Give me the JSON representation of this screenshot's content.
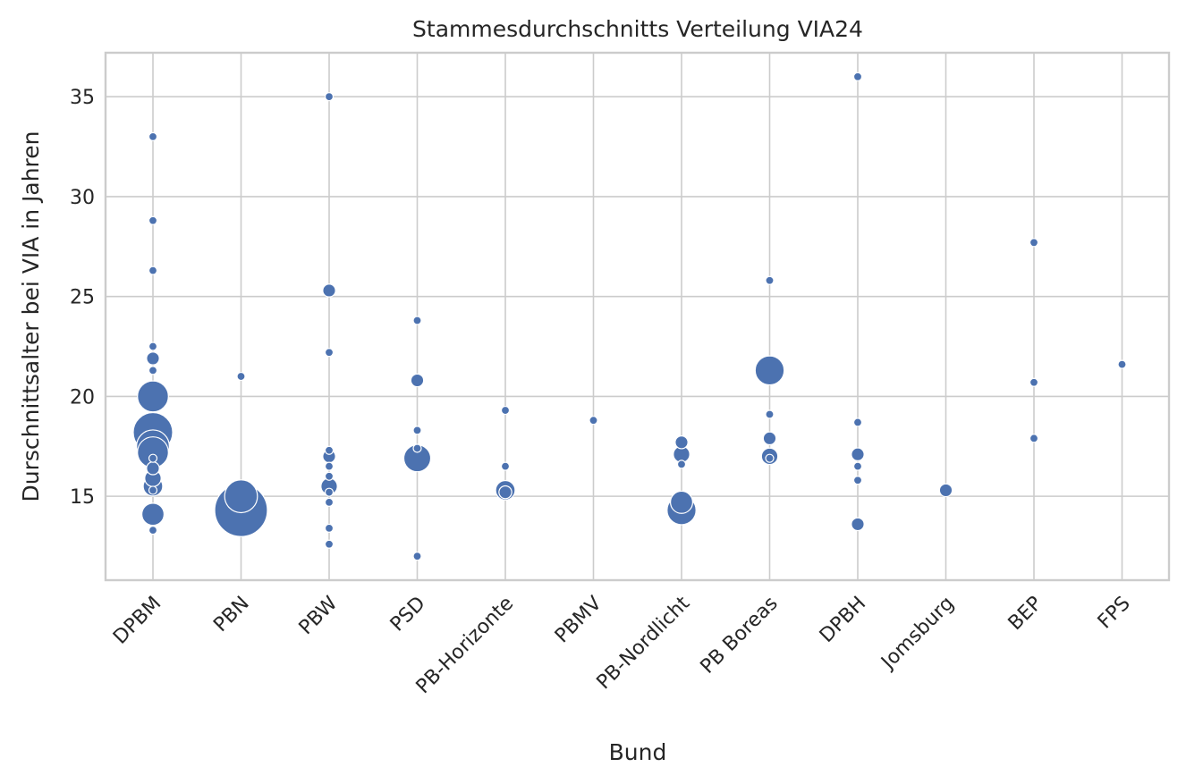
{
  "chart_data": {
    "type": "scatter",
    "title": "Stammesdurchschnitts Verteilung VIA24",
    "xlabel": "Bund",
    "ylabel": "Durschnittsalter bei VIA in Jahren",
    "categories": [
      "DPBM",
      "PBN",
      "PBW",
      "PSD",
      "PB-Horizonte",
      "PBMV",
      "PB-Nordlicht",
      "PB Boreas",
      "DPBH",
      "Jomsburg",
      "BEP",
      "FPS"
    ],
    "ylim": [
      10.8,
      37.2
    ],
    "yticks": [
      15,
      20,
      25,
      30,
      35
    ],
    "grid": true,
    "color": "#4c72b0",
    "points": [
      {
        "x": "DPBM",
        "y": 33.0,
        "size": 1
      },
      {
        "x": "DPBM",
        "y": 28.8,
        "size": 1
      },
      {
        "x": "DPBM",
        "y": 26.3,
        "size": 1
      },
      {
        "x": "DPBM",
        "y": 22.5,
        "size": 1
      },
      {
        "x": "DPBM",
        "y": 21.9,
        "size": 2
      },
      {
        "x": "DPBM",
        "y": 21.3,
        "size": 1
      },
      {
        "x": "DPBM",
        "y": 20.0,
        "size": 9
      },
      {
        "x": "DPBM",
        "y": 18.2,
        "size": 14
      },
      {
        "x": "DPBM",
        "y": 17.5,
        "size": 10
      },
      {
        "x": "DPBM",
        "y": 17.2,
        "size": 9
      },
      {
        "x": "DPBM",
        "y": 16.9,
        "size": 1
      },
      {
        "x": "DPBM",
        "y": 16.4,
        "size": 2
      },
      {
        "x": "DPBM",
        "y": 15.9,
        "size": 3
      },
      {
        "x": "DPBM",
        "y": 15.5,
        "size": 4
      },
      {
        "x": "DPBM",
        "y": 15.3,
        "size": 1
      },
      {
        "x": "DPBM",
        "y": 14.1,
        "size": 5
      },
      {
        "x": "DPBM",
        "y": 13.3,
        "size": 1
      },
      {
        "x": "PBN",
        "y": 21.0,
        "size": 1
      },
      {
        "x": "PBN",
        "y": 15.0,
        "size": 10
      },
      {
        "x": "PBN",
        "y": 14.3,
        "size": 24
      },
      {
        "x": "PBW",
        "y": 35.0,
        "size": 1
      },
      {
        "x": "PBW",
        "y": 25.3,
        "size": 2
      },
      {
        "x": "PBW",
        "y": 22.2,
        "size": 1
      },
      {
        "x": "PBW",
        "y": 17.3,
        "size": 1
      },
      {
        "x": "PBW",
        "y": 17.0,
        "size": 2
      },
      {
        "x": "PBW",
        "y": 16.5,
        "size": 1
      },
      {
        "x": "PBW",
        "y": 16.0,
        "size": 1
      },
      {
        "x": "PBW",
        "y": 15.5,
        "size": 3
      },
      {
        "x": "PBW",
        "y": 15.2,
        "size": 1
      },
      {
        "x": "PBW",
        "y": 14.7,
        "size": 1
      },
      {
        "x": "PBW",
        "y": 13.4,
        "size": 1
      },
      {
        "x": "PBW",
        "y": 12.6,
        "size": 1
      },
      {
        "x": "PSD",
        "y": 23.8,
        "size": 1
      },
      {
        "x": "PSD",
        "y": 20.8,
        "size": 2
      },
      {
        "x": "PSD",
        "y": 18.3,
        "size": 1
      },
      {
        "x": "PSD",
        "y": 17.4,
        "size": 1
      },
      {
        "x": "PSD",
        "y": 16.9,
        "size": 7
      },
      {
        "x": "PSD",
        "y": 12.0,
        "size": 1
      },
      {
        "x": "PB-Horizonte",
        "y": 19.3,
        "size": 1
      },
      {
        "x": "PB-Horizonte",
        "y": 16.5,
        "size": 1
      },
      {
        "x": "PB-Horizonte",
        "y": 15.3,
        "size": 4
      },
      {
        "x": "PB-Horizonte",
        "y": 15.2,
        "size": 2
      },
      {
        "x": "PBMV",
        "y": 18.8,
        "size": 1
      },
      {
        "x": "PB-Nordlicht",
        "y": 17.7,
        "size": 2
      },
      {
        "x": "PB-Nordlicht",
        "y": 17.1,
        "size": 3
      },
      {
        "x": "PB-Nordlicht",
        "y": 16.6,
        "size": 1
      },
      {
        "x": "PB-Nordlicht",
        "y": 14.7,
        "size": 5
      },
      {
        "x": "PB-Nordlicht",
        "y": 14.3,
        "size": 8
      },
      {
        "x": "PB Boreas",
        "y": 25.8,
        "size": 1
      },
      {
        "x": "PB Boreas",
        "y": 21.3,
        "size": 8
      },
      {
        "x": "PB Boreas",
        "y": 19.1,
        "size": 1
      },
      {
        "x": "PB Boreas",
        "y": 17.9,
        "size": 2
      },
      {
        "x": "PB Boreas",
        "y": 17.0,
        "size": 3
      },
      {
        "x": "PB Boreas",
        "y": 16.9,
        "size": 1
      },
      {
        "x": "DPBH",
        "y": 36.0,
        "size": 1
      },
      {
        "x": "DPBH",
        "y": 18.7,
        "size": 1
      },
      {
        "x": "DPBH",
        "y": 17.1,
        "size": 2
      },
      {
        "x": "DPBH",
        "y": 16.5,
        "size": 1
      },
      {
        "x": "DPBH",
        "y": 15.8,
        "size": 1
      },
      {
        "x": "DPBH",
        "y": 13.6,
        "size": 2
      },
      {
        "x": "Jomsburg",
        "y": 15.3,
        "size": 2
      },
      {
        "x": "BEP",
        "y": 27.7,
        "size": 1
      },
      {
        "x": "BEP",
        "y": 20.7,
        "size": 1
      },
      {
        "x": "BEP",
        "y": 17.9,
        "size": 1
      },
      {
        "x": "FPS",
        "y": 21.6,
        "size": 1
      }
    ]
  }
}
